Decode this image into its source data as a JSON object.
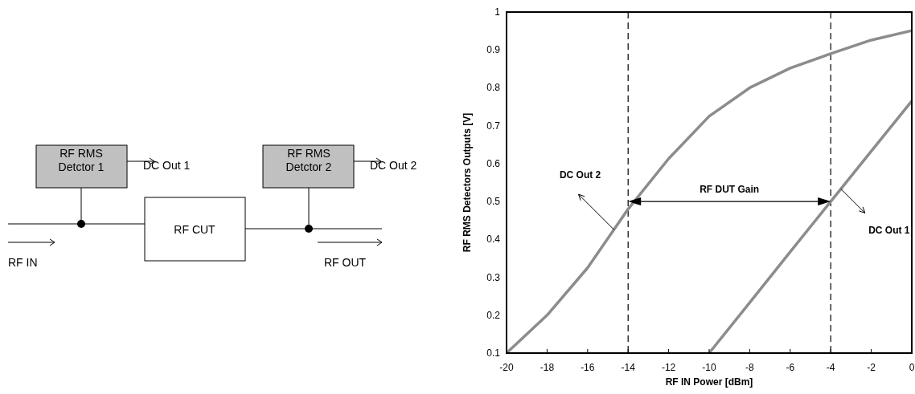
{
  "chart_data": [
    {
      "type": "other",
      "annotations": [
        "RF RMS\nDetctor 1",
        "DC Out 1",
        "RF RMS\nDetctor 2",
        "DC Out 2",
        "RF CUT",
        "RF IN",
        "RF OUT"
      ]
    },
    {
      "type": "line",
      "xlabel": "RF IN Power [dBm]",
      "ylabel": "RF RMS Detectors Outputs [V]",
      "xlim": [
        -20,
        0
      ],
      "ylim": [
        0.1,
        1
      ],
      "xticks": [
        -20,
        -18,
        -16,
        -14,
        -12,
        -10,
        -8,
        -6,
        -4,
        -2,
        0
      ],
      "yticks": [
        0.1,
        0.2,
        0.3,
        0.4,
        0.5,
        0.6,
        0.7,
        0.8,
        0.9,
        1
      ],
      "grid": false,
      "marker": "none",
      "line_style": "solid",
      "series": [
        {
          "color": "#8c8c8c",
          "x": [
            -20,
            -18,
            -16,
            -14,
            -12,
            -10,
            -8,
            -6,
            -4,
            -2,
            0
          ],
          "values": [
            0.1,
            0.2,
            0.325,
            0.48,
            0.613,
            0.725,
            0.8,
            0.852,
            0.89,
            0.926,
            0.951
          ]
        },
        {
          "color": "#8c8c8c",
          "x": [
            -10,
            -8,
            -6,
            -4,
            -2,
            0
          ],
          "values": [
            0.1,
            0.233,
            0.367,
            0.5,
            0.633,
            0.765
          ]
        }
      ],
      "ref_lines": [
        {
          "axis": "x",
          "value": -14,
          "color": "#000000",
          "line_style": "dashed"
        },
        {
          "axis": "x",
          "value": -4,
          "color": "#000000",
          "line_style": "dashed"
        }
      ],
      "annotations": [
        "DC Out 2",
        "RF DUT Gain",
        "DC Out 1"
      ]
    }
  ]
}
